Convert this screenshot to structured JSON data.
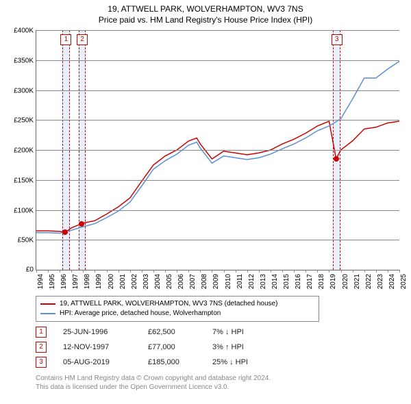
{
  "title_main": "19, ATTWELL PARK, WOLVERHAMPTON, WV3 7NS",
  "title_sub": "Price paid vs. HM Land Registry's House Price Index (HPI)",
  "chart": {
    "type": "line",
    "background_color": "#ffffff",
    "grid_color": "#888888",
    "xlim": [
      1994,
      2025
    ],
    "ylim": [
      0,
      400000
    ],
    "yticks": [
      0,
      50000,
      100000,
      150000,
      200000,
      250000,
      300000,
      350000,
      400000
    ],
    "ytick_labels": [
      "£0",
      "£50K",
      "£100K",
      "£150K",
      "£200K",
      "£250K",
      "£300K",
      "£350K",
      "£400K"
    ],
    "xticks": [
      1994,
      1995,
      1996,
      1997,
      1998,
      1999,
      2000,
      2001,
      2002,
      2003,
      2004,
      2005,
      2006,
      2007,
      2008,
      2009,
      2010,
      2011,
      2012,
      2013,
      2014,
      2015,
      2016,
      2017,
      2018,
      2019,
      2020,
      2021,
      2022,
      2023,
      2024,
      2025
    ],
    "label_fontsize": 10,
    "series": [
      {
        "name": "19, ATTWELL PARK, WOLVERHAMPTON, WV3 7NS (detached house)",
        "color": "#cc0000",
        "line_width": 1.5,
        "data": [
          [
            1994,
            65000
          ],
          [
            1995,
            65000
          ],
          [
            1996,
            64000
          ],
          [
            1996.48,
            62500
          ],
          [
            1997,
            70000
          ],
          [
            1997.87,
            77000
          ],
          [
            1998,
            78000
          ],
          [
            1999,
            82000
          ],
          [
            2000,
            93000
          ],
          [
            2001,
            105000
          ],
          [
            2002,
            120000
          ],
          [
            2003,
            148000
          ],
          [
            2004,
            175000
          ],
          [
            2005,
            190000
          ],
          [
            2006,
            200000
          ],
          [
            2007,
            215000
          ],
          [
            2007.7,
            220000
          ],
          [
            2008,
            210000
          ],
          [
            2009,
            185000
          ],
          [
            2010,
            198000
          ],
          [
            2011,
            195000
          ],
          [
            2012,
            192000
          ],
          [
            2013,
            195000
          ],
          [
            2014,
            200000
          ],
          [
            2015,
            210000
          ],
          [
            2016,
            218000
          ],
          [
            2017,
            228000
          ],
          [
            2018,
            240000
          ],
          [
            2019,
            248000
          ],
          [
            2019.6,
            185000
          ],
          [
            2020,
            200000
          ],
          [
            2021,
            215000
          ],
          [
            2022,
            235000
          ],
          [
            2023,
            238000
          ],
          [
            2024,
            245000
          ],
          [
            2025,
            248000
          ]
        ]
      },
      {
        "name": "HPI: Average price, detached house, Wolverhampton",
        "color": "#5b8fd6",
        "line_width": 1.5,
        "data": [
          [
            1994,
            62000
          ],
          [
            1995,
            62000
          ],
          [
            1996,
            61000
          ],
          [
            1997,
            66000
          ],
          [
            1998,
            72000
          ],
          [
            1999,
            77000
          ],
          [
            2000,
            87000
          ],
          [
            2001,
            98000
          ],
          [
            2002,
            113000
          ],
          [
            2003,
            140000
          ],
          [
            2004,
            168000
          ],
          [
            2005,
            182000
          ],
          [
            2006,
            193000
          ],
          [
            2007,
            208000
          ],
          [
            2007.7,
            213000
          ],
          [
            2008,
            203000
          ],
          [
            2009,
            178000
          ],
          [
            2010,
            190000
          ],
          [
            2011,
            187000
          ],
          [
            2012,
            184000
          ],
          [
            2013,
            187000
          ],
          [
            2014,
            193000
          ],
          [
            2015,
            202000
          ],
          [
            2016,
            210000
          ],
          [
            2017,
            220000
          ],
          [
            2018,
            232000
          ],
          [
            2019,
            240000
          ],
          [
            2020,
            252000
          ],
          [
            2021,
            285000
          ],
          [
            2022,
            320000
          ],
          [
            2023,
            320000
          ],
          [
            2024,
            335000
          ],
          [
            2025,
            348000
          ]
        ]
      }
    ],
    "sale_markers": [
      {
        "num": "1",
        "x": 1996.48,
        "y": 62500
      },
      {
        "num": "2",
        "x": 1997.87,
        "y": 77000
      },
      {
        "num": "3",
        "x": 2019.6,
        "y": 185000
      }
    ],
    "marker_band_color": "#e8f0fb",
    "marker_band_width_years": 0.5,
    "marker_border_color": "#cc0000"
  },
  "legend": {
    "items": [
      {
        "label": "19, ATTWELL PARK, WOLVERHAMPTON, WV3 7NS (detached house)",
        "color": "#cc0000"
      },
      {
        "label": "HPI: Average price, detached house, Wolverhampton",
        "color": "#5b8fd6"
      }
    ]
  },
  "sales_table": [
    {
      "num": "1",
      "date": "25-JUN-1996",
      "price": "£62,500",
      "delta": "7% ↓ HPI"
    },
    {
      "num": "2",
      "date": "12-NOV-1997",
      "price": "£77,000",
      "delta": "3% ↑ HPI"
    },
    {
      "num": "3",
      "date": "05-AUG-2019",
      "price": "£185,000",
      "delta": "25% ↓ HPI"
    }
  ],
  "footer_line1": "Contains HM Land Registry data © Crown copyright and database right 2024.",
  "footer_line2": "This data is licensed under the Open Government Licence v3.0."
}
